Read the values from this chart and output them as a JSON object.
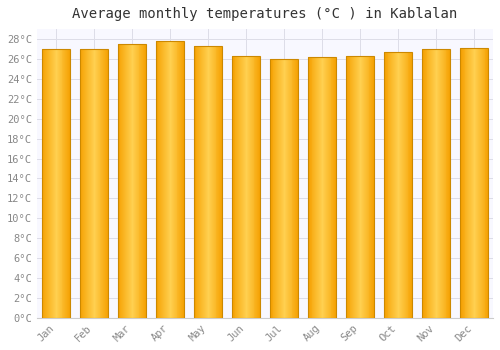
{
  "title": "Average monthly temperatures (°C ) in Kablalan",
  "months": [
    "Jan",
    "Feb",
    "Mar",
    "Apr",
    "May",
    "Jun",
    "Jul",
    "Aug",
    "Sep",
    "Oct",
    "Nov",
    "Dec"
  ],
  "temperatures": [
    27.0,
    27.0,
    27.5,
    27.8,
    27.3,
    26.3,
    26.0,
    26.2,
    26.3,
    26.7,
    27.0,
    27.1
  ],
  "bar_color_center": "#FFD050",
  "bar_color_edge": "#F5A000",
  "bar_border_color": "#CC8800",
  "background_color": "#FFFFFF",
  "plot_bg_color": "#F8F8FF",
  "grid_color": "#DDDDE8",
  "ylim": [
    0,
    29
  ],
  "ytick_step": 2,
  "title_fontsize": 10,
  "tick_fontsize": 7.5,
  "font_family": "monospace"
}
